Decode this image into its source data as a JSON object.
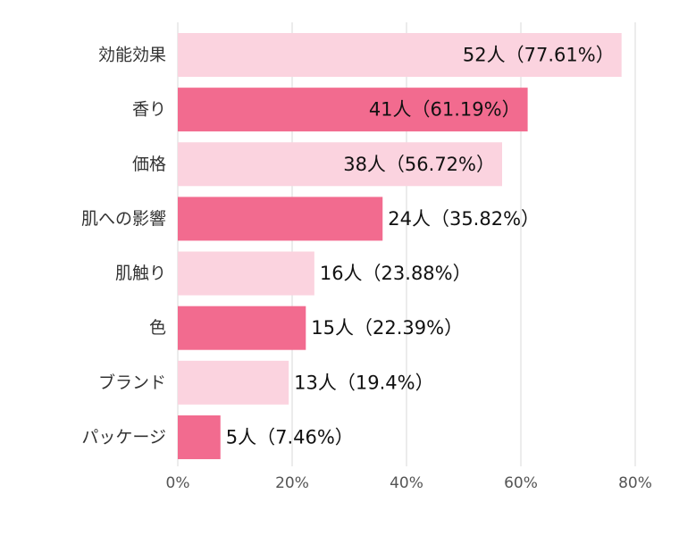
{
  "chart_data": {
    "type": "bar",
    "orientation": "horizontal",
    "categories": [
      "効能効果",
      "香り",
      "価格",
      "肌への影響",
      "肌触り",
      "色",
      "ブランド",
      "パッケージ"
    ],
    "values": [
      77.61,
      61.19,
      56.72,
      35.82,
      23.88,
      22.39,
      19.4,
      7.46
    ],
    "counts": [
      52,
      41,
      38,
      24,
      16,
      15,
      13,
      5
    ],
    "data_labels": [
      "52人（77.61%）",
      "41人（61.19%）",
      "38人（56.72%）",
      "24人（35.82%）",
      "16人（23.88%）",
      "15人（22.39%）",
      "13人（19.4%）",
      "5人（7.46%）"
    ],
    "xlim": [
      0,
      80
    ],
    "x_ticks": [
      "0%",
      "20%",
      "40%",
      "60%",
      "80%"
    ],
    "grid": "vertical",
    "colors": {
      "light": "#fbd3df",
      "dark": "#f26b8f"
    }
  }
}
